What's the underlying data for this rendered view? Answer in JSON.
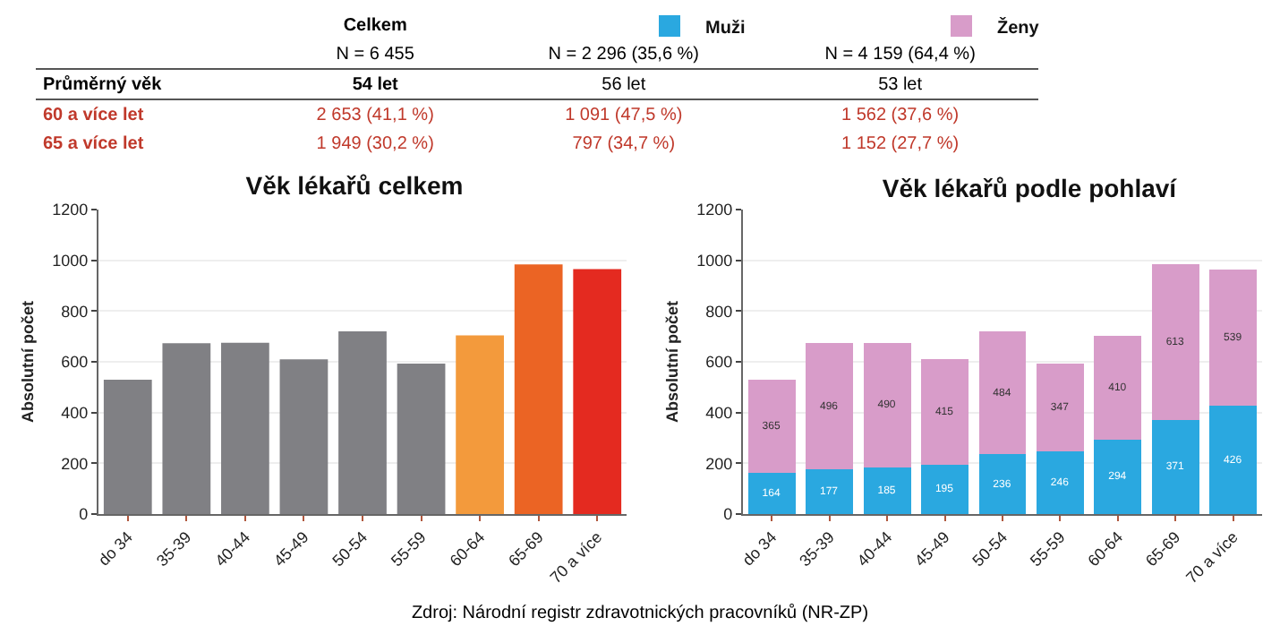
{
  "chart_data": [
    {
      "type": "other",
      "annotations": [
        "Celkem",
        "N = 6 455",
        "N = 2 296 (35,6 %)",
        "N = 4 159 (64,4 %)",
        "Průměrný věk",
        "54 let",
        "56 let",
        "53 let",
        "60 a více let",
        "2 653 (41,1 %)",
        "1 091 (47,5 %)",
        "1 562 (37,6 %)",
        "65 a více let",
        "1 949 (30,2 %)",
        "797 (34,7 %)",
        "1 152 (27,7 %)"
      ]
    },
    {
      "type": "bar",
      "title": "Věk lékařů celkem",
      "ylabel": "Absolutní počet",
      "categories": [
        "do 34",
        "35-39",
        "40-44",
        "45-49",
        "50-54",
        "55-59",
        "60-64",
        "65-69",
        "70 a více"
      ],
      "values": [
        529,
        673,
        675,
        610,
        720,
        593,
        704,
        984,
        965
      ],
      "colors": [
        "#808084",
        "#808084",
        "#808084",
        "#808084",
        "#808084",
        "#808084",
        "#f39a3c",
        "#eb6424",
        "#e42a20"
      ],
      "ylim": [
        0,
        1200
      ],
      "yticks": [
        0,
        200,
        400,
        600,
        800,
        1000,
        1200
      ],
      "grid": "y"
    },
    {
      "type": "bar",
      "title": "Věk lékařů podle pohlaví",
      "ylabel": "Absolutní počet",
      "categories": [
        "do 34",
        "35-39",
        "40-44",
        "45-49",
        "50-54",
        "55-59",
        "60-64",
        "65-69",
        "70 a více"
      ],
      "series": [
        {
          "name": "Muži",
          "color": "#2aa8e0",
          "values": [
            164,
            177,
            185,
            195,
            236,
            246,
            294,
            371,
            426
          ]
        },
        {
          "name": "Ženy",
          "color": "#d89cc9",
          "values": [
            365,
            496,
            490,
            415,
            484,
            347,
            410,
            613,
            539
          ]
        }
      ],
      "stacked": true,
      "data_labels": true,
      "legend": "top",
      "ylim": [
        0,
        1200
      ],
      "yticks": [
        0,
        200,
        400,
        600,
        800,
        1000,
        1200
      ],
      "grid": "y",
      "annotations": [
        "Zdroj: Národní registr zdravotnických pracovníků (NR-ZP)"
      ]
    }
  ]
}
